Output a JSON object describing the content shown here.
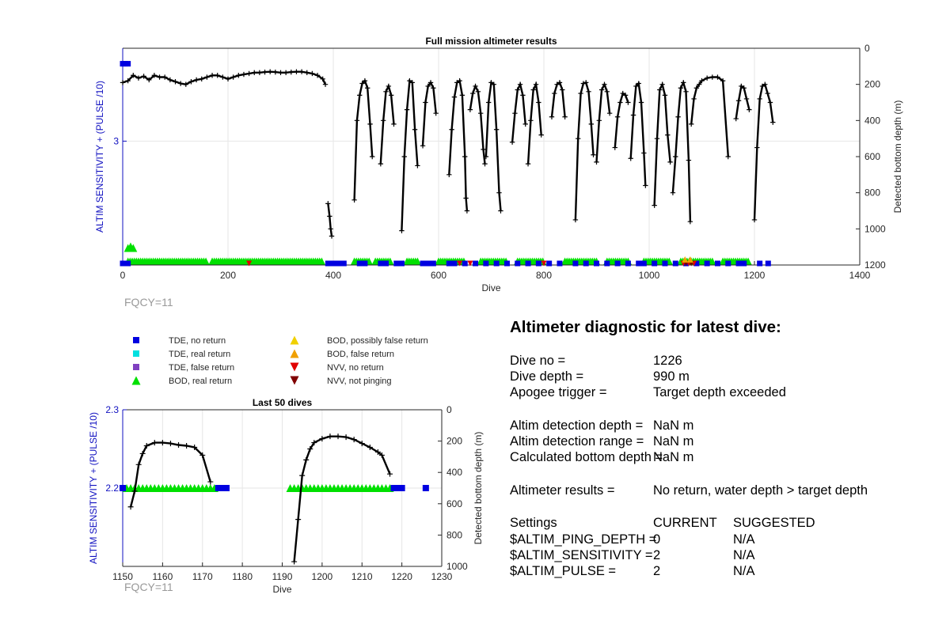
{
  "chart_data": [
    {
      "id": "full",
      "type": "line",
      "title": "Full mission altimeter results",
      "xlabel": "Dive",
      "ylabel_left": "ALTIM SENSITIVITY + (PULSE /10)",
      "ylabel_right": "Detected bottom depth (m)",
      "xlim": [
        0,
        1400
      ],
      "xticks": [
        0,
        200,
        400,
        600,
        800,
        1000,
        1200,
        1400
      ],
      "ylim_left": [
        2.2,
        3.6
      ],
      "yticks_left": [
        3
      ],
      "ylim_right": [
        0,
        1200
      ],
      "yticks_right": [
        0,
        200,
        400,
        600,
        800,
        1000,
        1200
      ],
      "grid": true,
      "note": "FQCY=11",
      "depth_series": [
        [
          [
            0,
            190
          ],
          [
            10,
            180
          ],
          [
            20,
            150
          ],
          [
            30,
            165
          ],
          [
            40,
            155
          ],
          [
            50,
            175
          ],
          [
            60,
            150
          ],
          [
            70,
            160
          ],
          [
            80,
            160
          ],
          [
            90,
            175
          ],
          [
            100,
            185
          ],
          [
            110,
            195
          ],
          [
            120,
            200
          ],
          [
            130,
            185
          ],
          [
            140,
            175
          ],
          [
            150,
            170
          ],
          [
            160,
            160
          ],
          [
            170,
            150
          ],
          [
            180,
            150
          ],
          [
            190,
            160
          ],
          [
            200,
            170
          ],
          [
            210,
            160
          ],
          [
            220,
            150
          ],
          [
            230,
            145
          ],
          [
            240,
            140
          ],
          [
            250,
            135
          ],
          [
            260,
            135
          ],
          [
            270,
            132
          ],
          [
            280,
            130
          ],
          [
            290,
            132
          ],
          [
            300,
            135
          ],
          [
            310,
            135
          ],
          [
            320,
            132
          ],
          [
            330,
            130
          ],
          [
            340,
            130
          ],
          [
            350,
            135
          ],
          [
            360,
            140
          ],
          [
            370,
            150
          ],
          [
            380,
            170
          ],
          [
            385,
            200
          ]
        ],
        [
          [
            390,
            860
          ],
          [
            393,
            930
          ],
          [
            395,
            1000
          ],
          [
            397,
            1040
          ]
        ],
        [
          [
            440,
            840
          ],
          [
            445,
            400
          ],
          [
            450,
            260
          ],
          [
            455,
            195
          ],
          [
            460,
            180
          ],
          [
            465,
            220
          ],
          [
            470,
            420
          ],
          [
            474,
            600
          ]
        ],
        [
          [
            490,
            640
          ],
          [
            495,
            400
          ],
          [
            500,
            240
          ],
          [
            505,
            210
          ],
          [
            510,
            260
          ],
          [
            515,
            420
          ]
        ],
        [
          [
            530,
            1010
          ],
          [
            535,
            600
          ],
          [
            540,
            340
          ],
          [
            545,
            180
          ],
          [
            550,
            190
          ],
          [
            555,
            450
          ],
          [
            560,
            650
          ]
        ],
        [
          [
            570,
            540
          ],
          [
            575,
            300
          ],
          [
            580,
            210
          ],
          [
            585,
            190
          ],
          [
            590,
            220
          ],
          [
            595,
            360
          ]
        ],
        [
          [
            620,
            700
          ],
          [
            625,
            450
          ],
          [
            630,
            270
          ],
          [
            635,
            190
          ],
          [
            640,
            180
          ],
          [
            645,
            260
          ],
          [
            650,
            600
          ],
          [
            652,
            830
          ],
          [
            654,
            900
          ]
        ],
        [
          [
            660,
            340
          ],
          [
            665,
            250
          ],
          [
            670,
            210
          ],
          [
            675,
            240
          ],
          [
            680,
            360
          ],
          [
            685,
            560
          ],
          [
            688,
            640
          ]
        ],
        [
          [
            690,
            600
          ],
          [
            695,
            300
          ],
          [
            700,
            190
          ],
          [
            705,
            200
          ],
          [
            710,
            450
          ],
          [
            715,
            800
          ],
          [
            718,
            900
          ]
        ],
        [
          [
            740,
            520
          ],
          [
            745,
            360
          ],
          [
            750,
            230
          ],
          [
            755,
            200
          ],
          [
            760,
            260
          ],
          [
            765,
            420
          ]
        ],
        [
          [
            770,
            640
          ],
          [
            775,
            400
          ],
          [
            780,
            230
          ],
          [
            785,
            200
          ],
          [
            790,
            300
          ],
          [
            795,
            480
          ]
        ],
        [
          [
            815,
            380
          ],
          [
            820,
            250
          ],
          [
            825,
            200
          ],
          [
            830,
            190
          ],
          [
            835,
            230
          ],
          [
            840,
            380
          ]
        ],
        [
          [
            860,
            950
          ],
          [
            865,
            500
          ],
          [
            870,
            250
          ],
          [
            875,
            195
          ],
          [
            880,
            190
          ],
          [
            885,
            240
          ],
          [
            890,
            420
          ],
          [
            894,
            590
          ]
        ],
        [
          [
            900,
            630
          ],
          [
            905,
            400
          ],
          [
            910,
            230
          ],
          [
            915,
            200
          ],
          [
            920,
            240
          ],
          [
            925,
            360
          ]
        ],
        [
          [
            935,
            550
          ],
          [
            940,
            380
          ],
          [
            945,
            300
          ],
          [
            950,
            250
          ],
          [
            955,
            260
          ],
          [
            960,
            300
          ]
        ],
        [
          [
            965,
            610
          ],
          [
            970,
            370
          ],
          [
            975,
            210
          ],
          [
            980,
            195
          ],
          [
            985,
            300
          ],
          [
            990,
            580
          ],
          [
            993,
            760
          ]
        ],
        [
          [
            1010,
            870
          ],
          [
            1015,
            500
          ],
          [
            1020,
            230
          ],
          [
            1025,
            200
          ],
          [
            1030,
            260
          ],
          [
            1035,
            480
          ],
          [
            1040,
            630
          ]
        ],
        [
          [
            1045,
            800
          ],
          [
            1050,
            600
          ],
          [
            1055,
            380
          ],
          [
            1060,
            220
          ],
          [
            1065,
            190
          ],
          [
            1070,
            240
          ],
          [
            1075,
            620
          ],
          [
            1078,
            960
          ]
        ],
        [
          [
            1080,
            420
          ],
          [
            1085,
            280
          ],
          [
            1090,
            220
          ],
          [
            1095,
            200
          ],
          [
            1100,
            180
          ],
          [
            1110,
            165
          ],
          [
            1120,
            160
          ],
          [
            1130,
            160
          ],
          [
            1140,
            180
          ],
          [
            1150,
            600
          ]
        ],
        [
          [
            1165,
            390
          ],
          [
            1170,
            290
          ],
          [
            1175,
            210
          ],
          [
            1180,
            220
          ],
          [
            1185,
            280
          ],
          [
            1190,
            340
          ]
        ],
        [
          [
            1200,
            950
          ],
          [
            1205,
            550
          ],
          [
            1210,
            280
          ],
          [
            1215,
            210
          ],
          [
            1220,
            200
          ],
          [
            1225,
            250
          ],
          [
            1230,
            300
          ],
          [
            1235,
            410
          ]
        ]
      ],
      "tde_no_return": {
        "color": "#0000e0",
        "dives": [
          0,
          5,
          10,
          390,
          400,
          410,
          420,
          450,
          460,
          490,
          500,
          520,
          530,
          570,
          580,
          590,
          620,
          630,
          650,
          670,
          690,
          710,
          730,
          750,
          770,
          790,
          810,
          830,
          860,
          880,
          900,
          920,
          940,
          960,
          980,
          990,
          1010,
          1030,
          1050,
          1070,
          1090,
          1110,
          1130,
          1150,
          1170,
          1180,
          1210,
          1226
        ],
        "head": [
          [
            0,
            3.5
          ],
          [
            5,
            3.5
          ],
          [
            10,
            3.5
          ]
        ]
      },
      "bod_real_return": {
        "color": "#00e000",
        "ranges": [
          [
            10,
            160
          ],
          [
            170,
            380
          ],
          [
            440,
            470
          ],
          [
            480,
            510
          ],
          [
            540,
            560
          ],
          [
            600,
            650
          ],
          [
            680,
            730
          ],
          [
            750,
            800
          ],
          [
            840,
            900
          ],
          [
            920,
            960
          ],
          [
            990,
            1040
          ],
          [
            1060,
            1120
          ],
          [
            1140,
            1190
          ]
        ],
        "raised": [
          [
            10,
            2.31
          ],
          [
            15,
            2.32
          ],
          [
            20,
            2.31
          ]
        ]
      },
      "nvv_no_return": {
        "color": "#e00000",
        "dives": [
          240,
          640,
          660,
          800,
          1065,
          1075,
          1085
        ]
      },
      "nvv_not_pinging": {
        "color": "#800000",
        "dives": [
          1070,
          1080
        ]
      },
      "bod_false": {
        "color": "#f0a000",
        "dives": [
          1068,
          1078
        ]
      }
    },
    {
      "id": "last50",
      "type": "line",
      "title": "Last 50 dives",
      "xlabel": "Dive",
      "ylabel_left": "ALTIM SENSITIVITY + (PULSE /10)",
      "ylabel_right": "Detected bottom depth (m)",
      "xlim": [
        1150,
        1230
      ],
      "xticks": [
        1150,
        1160,
        1170,
        1180,
        1190,
        1200,
        1210,
        1220,
        1230
      ],
      "ylim_left": [
        2.1,
        2.3
      ],
      "yticks_left": [
        2.2,
        2.3
      ],
      "ylim_right": [
        0,
        1000
      ],
      "yticks_right": [
        0,
        200,
        400,
        600,
        800,
        1000
      ],
      "grid": true,
      "note": "FQCY=11",
      "depth_series": [
        [
          [
            1152,
            620
          ],
          [
            1153,
            520
          ],
          [
            1154,
            350
          ],
          [
            1155,
            280
          ],
          [
            1156,
            230
          ],
          [
            1158,
            210
          ],
          [
            1160,
            210
          ],
          [
            1162,
            215
          ],
          [
            1164,
            225
          ],
          [
            1166,
            230
          ],
          [
            1168,
            240
          ],
          [
            1170,
            290
          ],
          [
            1172,
            460
          ]
        ],
        [
          [
            1193,
            970
          ],
          [
            1194,
            700
          ],
          [
            1195,
            420
          ],
          [
            1196,
            320
          ],
          [
            1197,
            250
          ],
          [
            1198,
            210
          ],
          [
            1200,
            185
          ],
          [
            1202,
            170
          ],
          [
            1204,
            170
          ],
          [
            1206,
            175
          ],
          [
            1208,
            190
          ],
          [
            1210,
            215
          ],
          [
            1212,
            240
          ],
          [
            1214,
            270
          ],
          [
            1215,
            290
          ],
          [
            1217,
            410
          ]
        ]
      ],
      "tde_no_return_dives": [
        1150,
        1174,
        1175,
        1176,
        1218,
        1219,
        1220,
        1226
      ],
      "bod_real_return_dives": [
        1151,
        1152,
        1153,
        1154,
        1155,
        1156,
        1157,
        1158,
        1159,
        1160,
        1161,
        1162,
        1163,
        1164,
        1165,
        1166,
        1167,
        1168,
        1169,
        1170,
        1171,
        1172,
        1173,
        1192,
        1193,
        1194,
        1195,
        1196,
        1197,
        1198,
        1199,
        1200,
        1201,
        1202,
        1203,
        1204,
        1205,
        1206,
        1207,
        1208,
        1209,
        1210,
        1211,
        1212,
        1213,
        1214,
        1215,
        1216,
        1217
      ]
    }
  ],
  "legend": [
    {
      "label": "TDE, no return",
      "shape": "square",
      "color": "#0000e0"
    },
    {
      "label": "TDE, real return",
      "shape": "square",
      "color": "#00e0e0"
    },
    {
      "label": "TDE, false return",
      "shape": "square",
      "color": "#8040c0"
    },
    {
      "label": "BOD, real return",
      "shape": "triangle-up",
      "color": "#00e000"
    },
    {
      "label": "BOD, possibly false return",
      "shape": "triangle-up",
      "color": "#f0d000"
    },
    {
      "label": "BOD, false return",
      "shape": "triangle-up",
      "color": "#f0a000"
    },
    {
      "label": "NVV, no return",
      "shape": "triangle-down",
      "color": "#e00000"
    },
    {
      "label": "NVV, not pinging",
      "shape": "triangle-down",
      "color": "#800000"
    }
  ],
  "colors": {
    "line": "#000000",
    "axis_left": "#1010c0",
    "grid": "#e6e6e6",
    "note": "#999999"
  },
  "diagnostic": {
    "title": "Altimeter diagnostic for latest dive:",
    "dive_no": {
      "label": "Dive no =",
      "value": "1226"
    },
    "dive_depth": {
      "label": "Dive depth =",
      "value": "990 m"
    },
    "apogee": {
      "label": "Apogee trigger =",
      "value": "Target depth exceeded"
    },
    "detect_depth": {
      "label": "Altim detection depth =",
      "value": "NaN m"
    },
    "detect_range": {
      "label": "Altim detection range =",
      "value": "NaN m"
    },
    "calc_bottom": {
      "label": "Calculated bottom depth =",
      "value": "NaN m"
    },
    "results": {
      "label": "Altimeter results =",
      "value": "No return, water depth > target depth"
    },
    "settings_header": {
      "label": "Settings",
      "current": "CURRENT",
      "suggested": "SUGGESTED"
    },
    "settings": [
      {
        "name": "$ALTIM_PING_DEPTH =",
        "current": "0",
        "suggested": "N/A"
      },
      {
        "name": "$ALTIM_SENSITIVITY =",
        "current": "2",
        "suggested": "N/A"
      },
      {
        "name": "$ALTIM_PULSE =",
        "current": "2",
        "suggested": "N/A"
      }
    ]
  }
}
